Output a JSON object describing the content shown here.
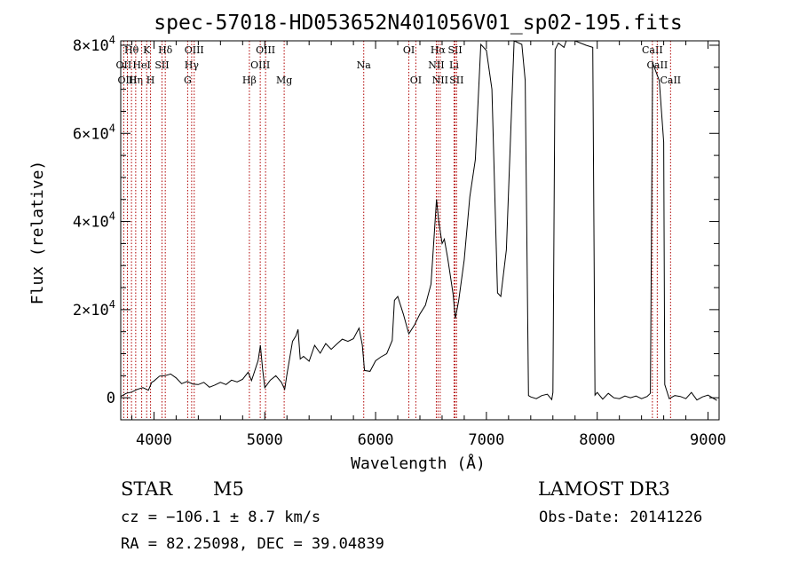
{
  "chart_data": {
    "type": "line",
    "title": "spec-57018-HD053652N401056V01_sp02-195.fits",
    "xlabel": "Wavelength (Å)",
    "ylabel": "Flux (relative)",
    "xlim": [
      3700,
      9100
    ],
    "ylim": [
      -5000,
      81000
    ],
    "x_ticks": [
      4000,
      5000,
      6000,
      7000,
      8000,
      9000
    ],
    "x_tick_labels": [
      "4000",
      "5000",
      "6000",
      "7000",
      "8000",
      "9000"
    ],
    "y_ticks": [
      {
        "value": 0,
        "mantissa": "0",
        "exponent": ""
      },
      {
        "value": 20000,
        "mantissa": "2×10",
        "exponent": "4"
      },
      {
        "value": 40000,
        "mantissa": "4×10",
        "exponent": "4"
      },
      {
        "value": 60000,
        "mantissa": "6×10",
        "exponent": "4"
      },
      {
        "value": 80000,
        "mantissa": "8×10",
        "exponent": "4"
      }
    ],
    "grid": false,
    "series": [
      {
        "name": "spectrum",
        "points": [
          [
            3700,
            300
          ],
          [
            3750,
            1000
          ],
          [
            3800,
            1300
          ],
          [
            3850,
            1900
          ],
          [
            3900,
            2300
          ],
          [
            3950,
            1700
          ],
          [
            3980,
            3500
          ],
          [
            4000,
            3800
          ],
          [
            4050,
            4900
          ],
          [
            4100,
            5000
          ],
          [
            4150,
            5400
          ],
          [
            4200,
            4500
          ],
          [
            4250,
            3200
          ],
          [
            4300,
            3700
          ],
          [
            4350,
            3100
          ],
          [
            4400,
            3000
          ],
          [
            4450,
            3500
          ],
          [
            4500,
            2400
          ],
          [
            4550,
            2900
          ],
          [
            4600,
            3500
          ],
          [
            4650,
            3000
          ],
          [
            4700,
            4000
          ],
          [
            4750,
            3600
          ],
          [
            4800,
            4200
          ],
          [
            4850,
            5800
          ],
          [
            4880,
            3900
          ],
          [
            4900,
            5400
          ],
          [
            4940,
            8500
          ],
          [
            4960,
            11900
          ],
          [
            4980,
            6500
          ],
          [
            5000,
            2300
          ],
          [
            5050,
            4000
          ],
          [
            5100,
            5000
          ],
          [
            5150,
            3500
          ],
          [
            5180,
            1900
          ],
          [
            5200,
            5300
          ],
          [
            5250,
            12800
          ],
          [
            5280,
            14000
          ],
          [
            5300,
            15500
          ],
          [
            5320,
            8800
          ],
          [
            5350,
            9400
          ],
          [
            5400,
            8300
          ],
          [
            5450,
            11900
          ],
          [
            5500,
            10100
          ],
          [
            5550,
            12300
          ],
          [
            5600,
            11000
          ],
          [
            5650,
            12200
          ],
          [
            5700,
            13300
          ],
          [
            5750,
            12800
          ],
          [
            5800,
            13400
          ],
          [
            5850,
            15800
          ],
          [
            5880,
            12000
          ],
          [
            5900,
            6200
          ],
          [
            5950,
            6000
          ],
          [
            6000,
            8400
          ],
          [
            6050,
            9300
          ],
          [
            6100,
            10000
          ],
          [
            6150,
            13000
          ],
          [
            6170,
            22100
          ],
          [
            6200,
            23000
          ],
          [
            6250,
            19000
          ],
          [
            6300,
            14500
          ],
          [
            6350,
            16500
          ],
          [
            6400,
            19000
          ],
          [
            6450,
            21000
          ],
          [
            6500,
            25800
          ],
          [
            6550,
            45000
          ],
          [
            6570,
            40000
          ],
          [
            6600,
            35000
          ],
          [
            6620,
            36000
          ],
          [
            6650,
            31800
          ],
          [
            6700,
            23500
          ],
          [
            6720,
            18000
          ],
          [
            6750,
            22100
          ],
          [
            6800,
            31300
          ],
          [
            6850,
            45600
          ],
          [
            6900,
            54000
          ],
          [
            6950,
            80200
          ],
          [
            7000,
            78800
          ],
          [
            7050,
            70000
          ],
          [
            7080,
            42000
          ],
          [
            7100,
            23800
          ],
          [
            7130,
            23000
          ],
          [
            7180,
            33600
          ],
          [
            7250,
            81000
          ],
          [
            7320,
            80200
          ],
          [
            7350,
            72000
          ],
          [
            7380,
            500
          ],
          [
            7400,
            200
          ],
          [
            7450,
            -200
          ],
          [
            7500,
            500
          ],
          [
            7550,
            800
          ],
          [
            7590,
            -400
          ],
          [
            7600,
            1200
          ],
          [
            7620,
            79000
          ],
          [
            7650,
            80500
          ],
          [
            7700,
            79500
          ],
          [
            7720,
            81000
          ],
          [
            7750,
            82000
          ],
          [
            7800,
            81000
          ],
          [
            7900,
            80000
          ],
          [
            7960,
            79500
          ],
          [
            7980,
            600
          ],
          [
            8000,
            1200
          ],
          [
            8050,
            -300
          ],
          [
            8100,
            1000
          ],
          [
            8150,
            0
          ],
          [
            8200,
            -200
          ],
          [
            8250,
            400
          ],
          [
            8300,
            0
          ],
          [
            8350,
            400
          ],
          [
            8400,
            -200
          ],
          [
            8450,
            300
          ],
          [
            8480,
            1000
          ],
          [
            8500,
            76000
          ],
          [
            8560,
            72000
          ],
          [
            8600,
            58000
          ],
          [
            8610,
            3000
          ],
          [
            8650,
            -200
          ],
          [
            8700,
            500
          ],
          [
            8750,
            300
          ],
          [
            8800,
            -200
          ],
          [
            8850,
            1200
          ],
          [
            8900,
            -500
          ],
          [
            8950,
            200
          ],
          [
            9000,
            600
          ],
          [
            9080,
            -600
          ]
        ]
      }
    ],
    "lines": [
      {
        "label": "Hθ",
        "x": 3797,
        "row": 0
      },
      {
        "label": "OII",
        "x": 3727,
        "row": 1
      },
      {
        "label": "OIII",
        "x": 3760,
        "row": 2
      },
      {
        "label": "Hη",
        "x": 3835,
        "row": 2
      },
      {
        "label": "HeI",
        "x": 3889,
        "row": 1
      },
      {
        "label": "K",
        "x": 3934,
        "row": 0
      },
      {
        "label": "H",
        "x": 3969,
        "row": 2
      },
      {
        "label": "SII",
        "x": 4072,
        "row": 1
      },
      {
        "label": "Hδ",
        "x": 4102,
        "row": 0
      },
      {
        "label": "OIII",
        "x": 4363,
        "row": 0
      },
      {
        "label": "Hγ",
        "x": 4340,
        "row": 1
      },
      {
        "label": "G",
        "x": 4304,
        "row": 2
      },
      {
        "label": "Hβ",
        "x": 4861,
        "row": 2
      },
      {
        "label": "OIII",
        "x": 4959,
        "row": 1
      },
      {
        "label": "OIII",
        "x": 5007,
        "row": 0
      },
      {
        "label": "Mg",
        "x": 5175,
        "row": 2
      },
      {
        "label": "Na",
        "x": 5893,
        "row": 1
      },
      {
        "label": "OI",
        "x": 6300,
        "row": 0
      },
      {
        "label": "OI",
        "x": 6363,
        "row": 2
      },
      {
        "label": "Hα",
        "x": 6563,
        "row": 0
      },
      {
        "label": "NII",
        "x": 6548,
        "row": 1
      },
      {
        "label": "NII",
        "x": 6583,
        "row": 2
      },
      {
        "label": "SII",
        "x": 6717,
        "row": 0
      },
      {
        "label": "Li",
        "x": 6708,
        "row": 1
      },
      {
        "label": "SII",
        "x": 6731,
        "row": 2
      },
      {
        "label": "CaII",
        "x": 8498,
        "row": 0
      },
      {
        "label": "CaII",
        "x": 8542,
        "row": 1
      },
      {
        "label": "CaII",
        "x": 8662,
        "row": 2
      }
    ]
  },
  "info": {
    "object_class": "STAR",
    "subclass": "M5",
    "survey": "LAMOST DR3",
    "redshift": "cz = −106.1 ± 8.7 km/s",
    "obs_date": "Obs-Date: 20141226",
    "coords": "RA =  82.25098, DEC =  39.04839"
  }
}
